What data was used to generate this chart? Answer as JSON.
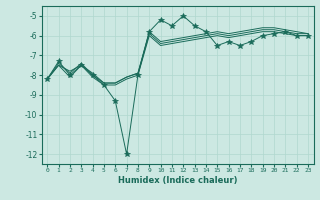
{
  "xlabel": "Humidex (Indice chaleur)",
  "ylabel": "",
  "bg_color": "#cce8e2",
  "grid_color": "#b0d8cf",
  "line_color": "#1a6b5a",
  "xlim": [
    -0.5,
    23.5
  ],
  "ylim": [
    -12.5,
    -4.5
  ],
  "xticks": [
    0,
    1,
    2,
    3,
    4,
    5,
    6,
    7,
    8,
    9,
    10,
    11,
    12,
    13,
    14,
    15,
    16,
    17,
    18,
    19,
    20,
    21,
    22,
    23
  ],
  "yticks": [
    -12,
    -11,
    -10,
    -9,
    -8,
    -7,
    -6,
    -5
  ],
  "series": [
    {
      "x": [
        0,
        1,
        2,
        3,
        4,
        5,
        6,
        7,
        8,
        9,
        10,
        11,
        12,
        13,
        14,
        15,
        16,
        17,
        18,
        19,
        20,
        21,
        22,
        23
      ],
      "y": [
        -8.2,
        -7.3,
        -8.0,
        -7.5,
        -8.0,
        -8.5,
        -9.3,
        -12.0,
        -8.0,
        -5.8,
        -5.2,
        -5.5,
        -5.0,
        -5.5,
        -5.8,
        -6.5,
        -6.3,
        -6.5,
        -6.3,
        -6.0,
        -5.9,
        -5.8,
        -6.0,
        -6.0
      ],
      "marker": "*",
      "markersize": 4
    },
    {
      "x": [
        0,
        1,
        2,
        3,
        4,
        5,
        6,
        7,
        8,
        9,
        10,
        11,
        12,
        13,
        14,
        15,
        16,
        17,
        18,
        19,
        20,
        21,
        22,
        23
      ],
      "y": [
        -8.2,
        -7.5,
        -8.1,
        -7.5,
        -8.1,
        -8.5,
        -8.5,
        -8.2,
        -8.0,
        -6.0,
        -6.5,
        -6.4,
        -6.3,
        -6.2,
        -6.1,
        -6.0,
        -6.1,
        -6.0,
        -5.9,
        -5.8,
        -5.8,
        -5.9,
        -6.0,
        -6.0
      ],
      "marker": null,
      "markersize": 0
    },
    {
      "x": [
        0,
        1,
        2,
        3,
        4,
        5,
        6,
        7,
        8,
        9,
        10,
        11,
        12,
        13,
        14,
        15,
        16,
        17,
        18,
        19,
        20,
        21,
        22,
        23
      ],
      "y": [
        -8.2,
        -7.5,
        -7.8,
        -7.5,
        -7.9,
        -8.4,
        -8.4,
        -8.1,
        -7.9,
        -5.9,
        -6.4,
        -6.3,
        -6.2,
        -6.1,
        -6.0,
        -5.9,
        -6.0,
        -5.9,
        -5.8,
        -5.7,
        -5.7,
        -5.8,
        -5.9,
        -5.9
      ],
      "marker": null,
      "markersize": 0
    },
    {
      "x": [
        0,
        1,
        2,
        3,
        4,
        5,
        6,
        7,
        8,
        9,
        10,
        11,
        12,
        13,
        14,
        15,
        16,
        17,
        18,
        19,
        20,
        21,
        22,
        23
      ],
      "y": [
        -8.2,
        -7.4,
        -7.9,
        -7.4,
        -8.0,
        -8.4,
        -8.4,
        -8.1,
        -7.9,
        -5.8,
        -6.3,
        -6.2,
        -6.1,
        -6.0,
        -5.9,
        -5.8,
        -5.9,
        -5.8,
        -5.7,
        -5.6,
        -5.6,
        -5.7,
        -5.8,
        -5.9
      ],
      "marker": null,
      "markersize": 0
    }
  ]
}
